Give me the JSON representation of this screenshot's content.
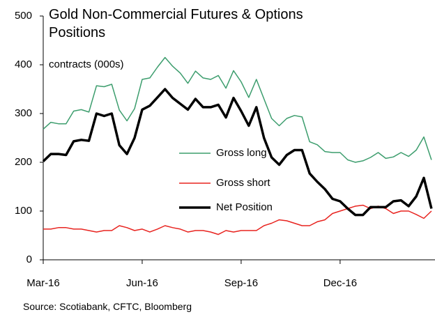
{
  "chart_data": {
    "type": "line",
    "title": "Gold Non-Commercial Futures & Options Positions",
    "subtitle": "contracts (000s)",
    "source": "Source: Scotiabank, CFTC, Bloomberg",
    "categories": [
      "Mar-16",
      null,
      null,
      null,
      null,
      null,
      null,
      null,
      null,
      null,
      null,
      null,
      null,
      "Jun-16",
      null,
      null,
      null,
      null,
      null,
      null,
      null,
      null,
      null,
      null,
      null,
      null,
      "Sep-16",
      null,
      null,
      null,
      null,
      null,
      null,
      null,
      null,
      null,
      null,
      null,
      null,
      "Dec-16",
      null,
      null,
      null,
      null,
      null,
      null,
      null,
      null,
      null,
      null,
      null,
      null
    ],
    "series": [
      {
        "name": "Gross long",
        "color": "#3c9d6d",
        "width": 1.5,
        "values": [
          268,
          282,
          279,
          279,
          305,
          308,
          303,
          357,
          355,
          360,
          307,
          285,
          310,
          370,
          373,
          395,
          415,
          397,
          383,
          362,
          387,
          373,
          370,
          378,
          352,
          388,
          365,
          333,
          370,
          330,
          290,
          275,
          290,
          296,
          293,
          242,
          236,
          222,
          220,
          220,
          205,
          200,
          203,
          210,
          220,
          208,
          211,
          220,
          212,
          225,
          252,
          205
        ]
      },
      {
        "name": "Gross short",
        "color": "#e8231f",
        "width": 1.5,
        "values": [
          63,
          63,
          66,
          66,
          63,
          63,
          60,
          57,
          60,
          60,
          70,
          66,
          60,
          63,
          57,
          63,
          70,
          66,
          63,
          57,
          60,
          60,
          57,
          52,
          60,
          57,
          60,
          60,
          60,
          70,
          75,
          82,
          80,
          75,
          70,
          70,
          78,
          82,
          95,
          100,
          105,
          110,
          112,
          105,
          110,
          105,
          95,
          100,
          100,
          93,
          85,
          100
        ]
      },
      {
        "name": "Net Position",
        "color": "#000000",
        "width": 3.5,
        "values": [
          202,
          217,
          217,
          215,
          243,
          246,
          244,
          300,
          295,
          300,
          235,
          217,
          250,
          308,
          316,
          333,
          350,
          332,
          320,
          308,
          330,
          313,
          313,
          318,
          292,
          332,
          305,
          275,
          313,
          250,
          210,
          195,
          215,
          225,
          225,
          177,
          160,
          145,
          125,
          120,
          105,
          92,
          92,
          108,
          108,
          108,
          120,
          122,
          110,
          130,
          168,
          105
        ]
      }
    ],
    "ylim": [
      0,
      500
    ],
    "yticks": [
      0,
      100,
      200,
      300,
      400,
      500
    ],
    "grid": false
  }
}
